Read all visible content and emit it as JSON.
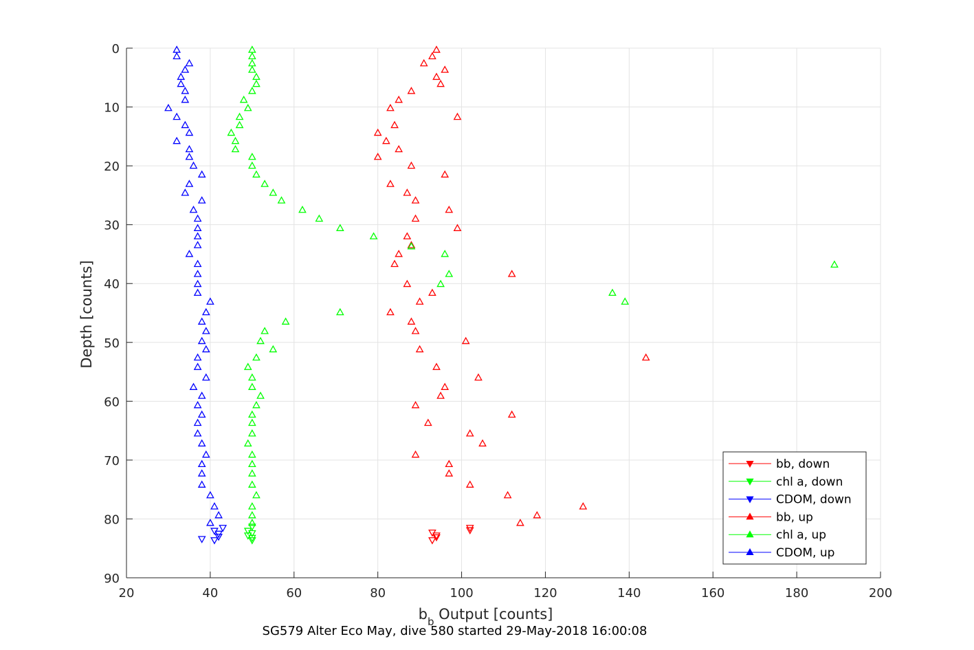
{
  "chart_data": {
    "type": "scatter",
    "title": "",
    "xlabel_main": "b",
    "xlabel_sub": "b",
    "xlabel_rest": " Output [counts]",
    "ylabel": "Depth [counts]",
    "caption": "SG579 Alter Eco May, dive 580 started 29-May-2018 16:00:08",
    "xlim": [
      20,
      200
    ],
    "ylim": [
      0,
      90
    ],
    "y_reversed": true,
    "xticks": [
      20,
      40,
      60,
      80,
      100,
      120,
      140,
      160,
      180,
      200
    ],
    "yticks": [
      0,
      10,
      20,
      30,
      40,
      50,
      60,
      70,
      80,
      90
    ],
    "grid": true,
    "legend_position": "bottom-right",
    "series": [
      {
        "name": "bb, down",
        "color": "#ff0000",
        "marker": "triangle-down",
        "x": [
          93,
          94,
          94,
          93,
          102,
          102
        ],
        "y": [
          82.3,
          82.8,
          83.1,
          83.6,
          81.5,
          81.9
        ]
      },
      {
        "name": "chl a, down",
        "color": "#00ff00",
        "marker": "triangle-down",
        "x": [
          49,
          50,
          49,
          50,
          50,
          50
        ],
        "y": [
          82.0,
          82.4,
          82.8,
          83.2,
          83.6,
          81.3
        ]
      },
      {
        "name": "CDOM, down",
        "color": "#0000ff",
        "marker": "triangle-down",
        "x": [
          41,
          42,
          43,
          41,
          38,
          42
        ],
        "y": [
          82.0,
          82.5,
          81.5,
          83.6,
          83.4,
          83.0
        ]
      },
      {
        "name": "bb, up",
        "color": "#ff0000",
        "marker": "triangle-up",
        "x": [
          94,
          93,
          91,
          96,
          94,
          95,
          88,
          85,
          83,
          99,
          84,
          80,
          82,
          85,
          80,
          88,
          96,
          83,
          87,
          89,
          97,
          89,
          99,
          87,
          85,
          84,
          112,
          87,
          93,
          90,
          83,
          88,
          89,
          101,
          90,
          144,
          94,
          104,
          96,
          95,
          89,
          112,
          92,
          102,
          105,
          89,
          97,
          97,
          102,
          111,
          129,
          118,
          114,
          88
        ],
        "y": [
          0.3,
          1.4,
          2.6,
          3.7,
          4.9,
          6.1,
          7.3,
          8.8,
          10.2,
          11.7,
          13.1,
          14.4,
          15.8,
          17.2,
          18.5,
          20.0,
          21.5,
          23.1,
          24.6,
          25.9,
          27.5,
          29.0,
          30.6,
          32.0,
          35.0,
          36.7,
          38.4,
          40.1,
          41.6,
          43.1,
          44.9,
          46.5,
          48.1,
          49.8,
          51.2,
          52.6,
          54.2,
          56.0,
          57.6,
          59.1,
          60.7,
          62.3,
          63.7,
          65.5,
          67.2,
          69.1,
          70.7,
          72.3,
          74.2,
          76.0,
          77.9,
          79.4,
          80.7,
          33.5
        ],
        "highlight": [
          1,
          2
        ]
      },
      {
        "name": "chl a, up",
        "color": "#00ff00",
        "marker": "triangle-up",
        "x": [
          50,
          50,
          50,
          50,
          51,
          51,
          50,
          48,
          49,
          47,
          47,
          45,
          46,
          46,
          50,
          50,
          51,
          53,
          55,
          57,
          62,
          66,
          71,
          79,
          88,
          96,
          189,
          97,
          95,
          136,
          139,
          71,
          58,
          53,
          52,
          55,
          51,
          49,
          50,
          50,
          52,
          51,
          50,
          50,
          50,
          49,
          50,
          50,
          50,
          50,
          51,
          50,
          50,
          50
        ],
        "y": [
          0.3,
          1.4,
          2.6,
          3.7,
          4.9,
          6.1,
          7.3,
          8.8,
          10.2,
          11.7,
          13.1,
          14.4,
          15.8,
          17.2,
          18.5,
          20.0,
          21.5,
          23.1,
          24.6,
          25.9,
          27.5,
          29.0,
          30.6,
          32.0,
          33.7,
          35.0,
          36.8,
          38.4,
          40.1,
          41.6,
          43.1,
          44.9,
          46.5,
          48.1,
          49.8,
          51.2,
          52.6,
          54.2,
          56.0,
          57.6,
          59.1,
          60.7,
          62.3,
          63.7,
          65.5,
          67.2,
          69.1,
          70.7,
          72.3,
          74.2,
          76.0,
          77.9,
          79.4,
          80.7
        ]
      },
      {
        "name": "CDOM, up",
        "color": "#0000ff",
        "marker": "triangle-up",
        "x": [
          32,
          32,
          35,
          34,
          33,
          33,
          34,
          34,
          30,
          32,
          34,
          35,
          32,
          35,
          35,
          36,
          38,
          35,
          34,
          38,
          36,
          37,
          37,
          37,
          37,
          35,
          37,
          37,
          37,
          37,
          40,
          39,
          38,
          39,
          38,
          39,
          37,
          37,
          39,
          36,
          38,
          37,
          38,
          37,
          37,
          38,
          39,
          38,
          38,
          38,
          40,
          41,
          42,
          40
        ],
        "y": [
          0.3,
          1.4,
          2.6,
          3.7,
          4.9,
          6.1,
          7.3,
          8.8,
          10.2,
          11.7,
          13.1,
          14.4,
          15.8,
          17.2,
          18.5,
          20.0,
          21.5,
          23.1,
          24.6,
          25.9,
          27.5,
          29.0,
          30.6,
          32.0,
          33.5,
          35.0,
          36.7,
          38.4,
          40.1,
          41.6,
          43.1,
          44.9,
          46.5,
          48.1,
          49.8,
          51.2,
          52.6,
          54.2,
          56.0,
          57.6,
          59.1,
          60.7,
          62.3,
          63.7,
          65.5,
          67.2,
          69.1,
          70.7,
          72.3,
          74.2,
          76.0,
          77.9,
          79.4,
          80.7
        ]
      }
    ]
  }
}
